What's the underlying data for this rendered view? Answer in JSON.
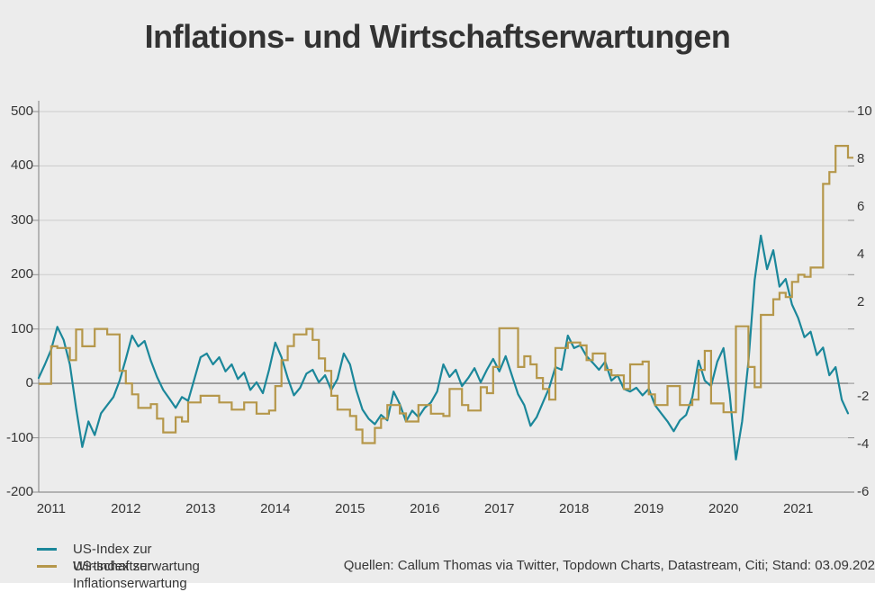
{
  "title": "Inflations- und Wirtschaftserwartungen",
  "source_note": "Quellen: Callum Thomas via Twitter, Topdown Charts, Datastream, Citi; Stand: 03.09.202",
  "colors": {
    "background": "#ececec",
    "grid": "#cbcbcb",
    "zero_line": "#8f8f8f",
    "axis": "#8f8f8f",
    "text": "#363636",
    "wirtschaft": "#1b879a",
    "inflation": "#b5974a"
  },
  "legend": [
    {
      "label": "US-Index zur Wirtschaftserwartung",
      "color": "#1b879a"
    },
    {
      "label": "US-Index zur Inflationserwartung",
      "color": "#b5974a"
    }
  ],
  "chart_data": {
    "type": "line",
    "title": "Inflations- und Wirtschaftserwartungen",
    "x_start": "2010-11",
    "x_end": "2021-09",
    "sampling": "monthly",
    "x_axis": {
      "labels": [
        "2011",
        "2012",
        "2013",
        "2014",
        "2015",
        "2016",
        "2017",
        "2018",
        "2019",
        "2020",
        "2021"
      ],
      "first_label_index": 2,
      "points_per_label": 12
    },
    "left_axis": {
      "max": 500,
      "min": -200,
      "ticks": [
        500,
        400,
        300,
        200,
        100,
        0,
        -100,
        -200
      ]
    },
    "right_axis": {
      "max": 10,
      "min": -6,
      "ticks": [
        10,
        8,
        6,
        4,
        2,
        -2,
        -4,
        -6
      ]
    },
    "grid": true,
    "legend_position": "bottom-left",
    "series": [
      {
        "name": "US-Index zur Wirtschaftserwartung",
        "axis": "left",
        "style": "line",
        "color": "#1b879a",
        "values": [
          10,
          35,
          62,
          104,
          80,
          35,
          -45,
          -117,
          -70,
          -95,
          -55,
          -40,
          -25,
          5,
          45,
          88,
          68,
          78,
          42,
          12,
          -12,
          -28,
          -45,
          -25,
          -32,
          8,
          48,
          55,
          35,
          48,
          22,
          35,
          8,
          20,
          -12,
          2,
          -18,
          25,
          75,
          48,
          10,
          -22,
          -8,
          18,
          25,
          2,
          15,
          -12,
          8,
          55,
          35,
          -12,
          -48,
          -65,
          -75,
          -58,
          -68,
          -15,
          -38,
          -70,
          -50,
          -62,
          -45,
          -35,
          -15,
          35,
          12,
          25,
          -5,
          10,
          28,
          2,
          25,
          45,
          22,
          50,
          15,
          -20,
          -40,
          -78,
          -62,
          -35,
          -8,
          30,
          25,
          88,
          65,
          70,
          50,
          38,
          25,
          40,
          5,
          15,
          -10,
          -15,
          -8,
          -22,
          -10,
          -40,
          -55,
          -70,
          -88,
          -68,
          -58,
          -25,
          42,
          5,
          -5,
          40,
          65,
          -20,
          -140,
          -70,
          40,
          190,
          272,
          210,
          245,
          178,
          192,
          145,
          120,
          85,
          95,
          52,
          66,
          15,
          30,
          -30,
          -55
        ]
      },
      {
        "name": "US-Index zur Inflationserwartung",
        "axis": "right",
        "style": "step",
        "color": "#b5974a",
        "values": [
          -1.45,
          -1.45,
          0.13,
          0.06,
          0.06,
          -0.45,
          0.84,
          0.13,
          0.13,
          0.86,
          0.86,
          0.63,
          0.63,
          -0.9,
          -1.43,
          -1.89,
          -2.46,
          -2.46,
          -2.3,
          -2.91,
          -3.49,
          -3.49,
          -2.85,
          -3.03,
          -2.23,
          -2.23,
          -1.95,
          -1.95,
          -1.95,
          -2.23,
          -2.23,
          -2.53,
          -2.53,
          -2.23,
          -2.23,
          -2.7,
          -2.7,
          -2.57,
          -1.54,
          -0.45,
          0.14,
          0.63,
          0.63,
          0.86,
          0.4,
          -0.38,
          -0.9,
          -1.95,
          -2.53,
          -2.53,
          -2.8,
          -3.37,
          -3.94,
          -3.94,
          -3.3,
          -2.91,
          -2.34,
          -2.34,
          -2.69,
          -3.03,
          -3.03,
          -2.34,
          -2.34,
          -2.7,
          -2.7,
          -2.8,
          -1.66,
          -1.66,
          -2.34,
          -2.57,
          -2.57,
          -1.59,
          -1.84,
          -0.74,
          0.89,
          0.89,
          0.89,
          -0.74,
          -0.29,
          -0.63,
          -1.2,
          -1.66,
          -2.11,
          0.06,
          0.06,
          0.29,
          0.29,
          0.17,
          -0.45,
          -0.17,
          -0.17,
          -0.86,
          -1.09,
          -1.09,
          -1.66,
          -0.63,
          -0.63,
          -0.51,
          -1.89,
          -2.34,
          -2.34,
          -1.54,
          -1.54,
          -2.34,
          -2.34,
          -2.11,
          -0.86,
          -0.06,
          -2.27,
          -2.27,
          -2.64,
          -2.64,
          0.97,
          0.97,
          -0.74,
          -1.59,
          1.45,
          1.45,
          2.11,
          2.38,
          2.2,
          2.84,
          3.14,
          3.05,
          3.44,
          3.44,
          6.96,
          7.46,
          8.56,
          8.56,
          8.06
        ]
      }
    ]
  }
}
